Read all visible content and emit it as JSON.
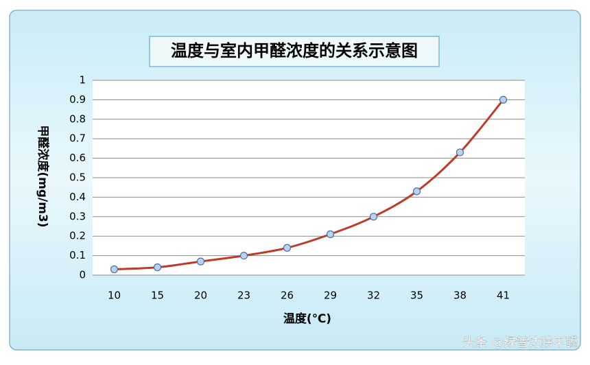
{
  "chart_data": {
    "type": "line",
    "title": "温度与室内甲醛浓度的关系示意图",
    "x_label": "温度(℃)",
    "y_label": "甲醛浓度(mg/m3)",
    "categories": [
      "10",
      "15",
      "20",
      "23",
      "26",
      "29",
      "32",
      "35",
      "38",
      "41"
    ],
    "series": [
      {
        "name": "甲醛浓度",
        "color": "#c0392b",
        "values": [
          0.03,
          0.04,
          0.07,
          0.1,
          0.14,
          0.21,
          0.3,
          0.43,
          0.63,
          0.9
        ]
      }
    ],
    "ylim": [
      0,
      1
    ],
    "yticks": [
      0,
      0.1,
      0.2,
      0.3,
      0.4,
      0.5,
      0.6,
      0.7,
      0.8,
      0.9,
      1
    ],
    "grid": true,
    "legend": false
  },
  "watermark": "头条 @绿普达除甲醛"
}
